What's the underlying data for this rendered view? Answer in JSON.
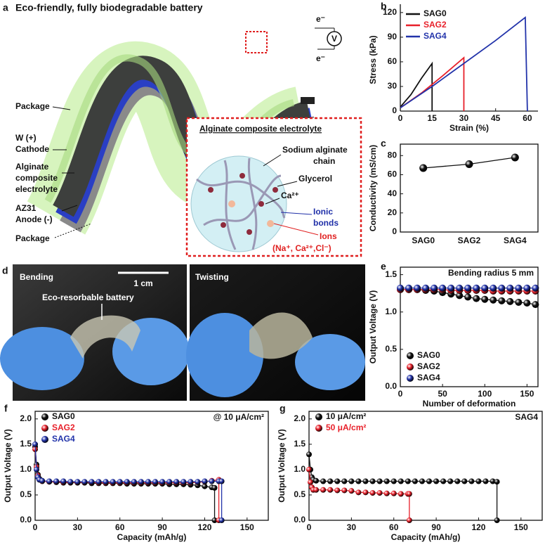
{
  "panel_a": {
    "label": "a",
    "title": "Eco-friendly, fully biodegradable battery",
    "electrons": [
      "e⁻",
      "e⁻"
    ],
    "meter": "V",
    "labels": [
      "Package",
      "W (+)",
      "Cathode",
      "Alginate",
      "composite",
      "electrolyte",
      "AZ31",
      "Anode (-)",
      "Package"
    ],
    "inset": {
      "title": "Alginate composite electrolyte",
      "labels": [
        "Sodium alginate",
        "chain",
        "Glycerol",
        "Ca²⁺",
        "Ionic",
        "bonds",
        "Ions",
        "(Na⁺, Ca²⁺,Cl⁻)"
      ]
    }
  },
  "panel_d": {
    "label": "d",
    "left": "Bending",
    "scale": "1 cm",
    "battery": "Eco-resorbable battery",
    "right": "Twisting"
  },
  "chart_data": [
    {
      "label": "b",
      "type": "line",
      "x_label": "Strain (%)",
      "y_label": "Stress (kPa)",
      "xlim": [
        0,
        65
      ],
      "xticks": [
        0,
        15,
        30,
        45,
        60
      ],
      "ylim": [
        0,
        125
      ],
      "yticks": [
        0,
        30,
        60,
        90,
        120
      ],
      "markers": false,
      "box": false,
      "legend": "upper left",
      "legend_colored_text": true,
      "series": [
        {
          "name": "SAG0",
          "color": "#111111",
          "x": [
            0,
            5,
            10,
            15,
            15
          ],
          "values": [
            5,
            20,
            40,
            58,
            0
          ]
        },
        {
          "name": "SAG2",
          "color": "#e8202a",
          "x": [
            0,
            10,
            20,
            30,
            30
          ],
          "values": [
            4,
            22,
            43,
            65,
            0
          ]
        },
        {
          "name": "SAG4",
          "color": "#2233aa",
          "x": [
            0,
            15,
            30,
            45,
            59,
            60
          ],
          "values": [
            4,
            30,
            58,
            86,
            114,
            0
          ]
        }
      ]
    },
    {
      "label": "c",
      "type": "line",
      "y_label": "Conductivity (mS/cm)",
      "categories": [
        "SAG0",
        "SAG2",
        "SAG4"
      ],
      "values": [
        67,
        71,
        78
      ],
      "color": "#111111",
      "ylim": [
        0,
        92
      ],
      "yticks": [
        0,
        20,
        40,
        60,
        80
      ],
      "markers": true,
      "box": true
    },
    {
      "label": "e",
      "type": "line",
      "x_label": "Number of deformation",
      "y_label": "Output Voltage (V)",
      "annotation": "Bending radius 5 mm",
      "xlim": [
        0,
        163
      ],
      "xticks": [
        0,
        50,
        100,
        150
      ],
      "ylim": [
        0,
        1.6
      ],
      "yticks": [
        {
          "value": 0,
          "label": "0.0"
        },
        0.5,
        {
          "value": 1,
          "label": "1.0"
        },
        1.5
      ],
      "markers": true,
      "box": true,
      "legend": "lower left",
      "legend_colored_text": false,
      "series": [
        {
          "name": "SAG0",
          "color": "#111111",
          "x": [
            0,
            10,
            20,
            30,
            40,
            50,
            60,
            70,
            80,
            90,
            100,
            110,
            120,
            130,
            140,
            150,
            160
          ],
          "values": [
            1.3,
            1.3,
            1.3,
            1.29,
            1.28,
            1.26,
            1.24,
            1.22,
            1.2,
            1.18,
            1.17,
            1.16,
            1.15,
            1.14,
            1.13,
            1.12,
            1.1
          ]
        },
        {
          "name": "SAG2",
          "color": "#e8202a",
          "x": [
            0,
            10,
            20,
            30,
            40,
            50,
            60,
            70,
            80,
            90,
            100,
            110,
            120,
            130,
            140,
            150,
            160
          ],
          "values": [
            1.3,
            1.3,
            1.3,
            1.3,
            1.3,
            1.3,
            1.29,
            1.29,
            1.29,
            1.29,
            1.29,
            1.28,
            1.28,
            1.28,
            1.28,
            1.28,
            1.28
          ]
        },
        {
          "name": "SAG4",
          "color": "#2233aa",
          "x": [
            0,
            10,
            20,
            30,
            40,
            50,
            60,
            70,
            80,
            90,
            100,
            110,
            120,
            130,
            140,
            150,
            160
          ],
          "values": [
            1.32,
            1.32,
            1.32,
            1.32,
            1.32,
            1.32,
            1.32,
            1.32,
            1.32,
            1.32,
            1.32,
            1.32,
            1.32,
            1.32,
            1.32,
            1.32,
            1.32
          ]
        }
      ]
    },
    {
      "label": "f",
      "type": "line",
      "x_label": "Capacity (mAh/g)",
      "y_label": "Output Voltage (V)",
      "annotation": "@ 10 μA/cm²",
      "xlim": [
        0,
        165
      ],
      "xticks": [
        0,
        30,
        60,
        90,
        120,
        150
      ],
      "ylim": [
        0,
        2.15
      ],
      "yticks": [
        {
          "value": 0,
          "label": "0.0"
        },
        0.5,
        {
          "value": 1,
          "label": "1.0"
        },
        1.5,
        {
          "value": 2,
          "label": "2.0"
        }
      ],
      "markers": true,
      "box": true,
      "legend": "upper left",
      "legend_colored_text": true,
      "series": [
        {
          "name": "SAG0",
          "color": "#111111",
          "x": [
            0,
            1,
            2,
            3,
            5,
            10,
            15,
            20,
            25,
            30,
            35,
            40,
            45,
            50,
            55,
            60,
            65,
            70,
            75,
            80,
            85,
            90,
            95,
            100,
            105,
            110,
            115,
            120,
            125,
            127,
            127
          ],
          "values": [
            1.45,
            1.1,
            0.9,
            0.82,
            0.78,
            0.76,
            0.75,
            0.74,
            0.74,
            0.74,
            0.74,
            0.73,
            0.73,
            0.73,
            0.73,
            0.73,
            0.72,
            0.72,
            0.72,
            0.72,
            0.72,
            0.72,
            0.71,
            0.71,
            0.71,
            0.7,
            0.69,
            0.67,
            0.65,
            0.64,
            0
          ]
        },
        {
          "name": "SAG2",
          "color": "#e8202a",
          "x": [
            0,
            1,
            2,
            3,
            5,
            10,
            15,
            20,
            25,
            30,
            35,
            40,
            45,
            50,
            55,
            60,
            65,
            70,
            75,
            80,
            85,
            90,
            95,
            100,
            105,
            110,
            115,
            120,
            125,
            130,
            130
          ],
          "values": [
            1.4,
            1.05,
            0.88,
            0.8,
            0.77,
            0.76,
            0.76,
            0.75,
            0.75,
            0.75,
            0.75,
            0.75,
            0.74,
            0.74,
            0.74,
            0.74,
            0.74,
            0.74,
            0.74,
            0.74,
            0.74,
            0.74,
            0.74,
            0.74,
            0.74,
            0.74,
            0.75,
            0.76,
            0.78,
            0.8,
            0
          ]
        },
        {
          "name": "SAG4",
          "color": "#2233aa",
          "x": [
            0,
            1,
            2,
            3,
            5,
            10,
            15,
            20,
            25,
            30,
            35,
            40,
            45,
            50,
            55,
            60,
            65,
            70,
            75,
            80,
            85,
            90,
            95,
            100,
            105,
            110,
            115,
            120,
            125,
            130,
            132,
            132
          ],
          "values": [
            1.5,
            1.0,
            0.85,
            0.8,
            0.78,
            0.77,
            0.77,
            0.77,
            0.76,
            0.76,
            0.76,
            0.76,
            0.76,
            0.76,
            0.76,
            0.76,
            0.76,
            0.76,
            0.76,
            0.76,
            0.76,
            0.76,
            0.76,
            0.76,
            0.76,
            0.76,
            0.76,
            0.77,
            0.77,
            0.77,
            0.77,
            0
          ]
        }
      ]
    },
    {
      "label": "g",
      "type": "line",
      "x_label": "Capacity (mAh/g)",
      "y_label": "Output Voltage (V)",
      "annotation": "SAG4",
      "xlim": [
        0,
        165
      ],
      "xticks": [
        0,
        30,
        60,
        90,
        120,
        150
      ],
      "ylim": [
        0,
        2.15
      ],
      "yticks": [
        {
          "value": 0,
          "label": "0.0"
        },
        0.5,
        {
          "value": 1,
          "label": "1.0"
        },
        1.5,
        {
          "value": 2,
          "label": "2.0"
        }
      ],
      "markers": true,
      "box": true,
      "legend": "upper left",
      "legend_colored_text": true,
      "series": [
        {
          "name": "10 μA/cm²",
          "color": "#111111",
          "x": [
            0,
            1,
            2,
            3,
            5,
            10,
            15,
            20,
            25,
            30,
            35,
            40,
            45,
            50,
            55,
            60,
            65,
            70,
            75,
            80,
            85,
            90,
            95,
            100,
            105,
            110,
            115,
            120,
            125,
            130,
            133,
            133
          ],
          "values": [
            1.3,
            1.0,
            0.85,
            0.8,
            0.78,
            0.77,
            0.77,
            0.77,
            0.77,
            0.77,
            0.77,
            0.77,
            0.77,
            0.77,
            0.77,
            0.77,
            0.77,
            0.77,
            0.77,
            0.77,
            0.77,
            0.77,
            0.77,
            0.77,
            0.77,
            0.77,
            0.77,
            0.77,
            0.77,
            0.77,
            0.76,
            0
          ]
        },
        {
          "name": "50 μA/cm²",
          "color": "#e8202a",
          "x": [
            0,
            1,
            2,
            3,
            5,
            10,
            15,
            20,
            25,
            30,
            35,
            40,
            45,
            50,
            55,
            60,
            65,
            70,
            71,
            71
          ],
          "values": [
            1.0,
            0.75,
            0.65,
            0.6,
            0.6,
            0.6,
            0.6,
            0.59,
            0.59,
            0.58,
            0.55,
            0.55,
            0.54,
            0.54,
            0.53,
            0.53,
            0.52,
            0.52,
            0.52,
            0
          ]
        }
      ]
    }
  ]
}
